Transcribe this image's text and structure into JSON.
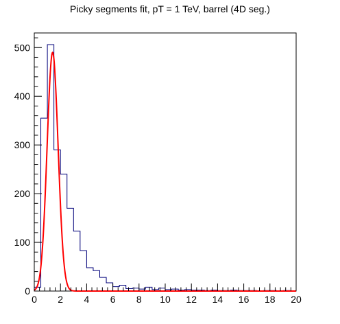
{
  "chart_data": {
    "type": "histogram",
    "title": "Picky segments fit, pT = 1 TeV, barrel (4D seg.)",
    "xlim": [
      0,
      20
    ],
    "ylim": [
      0,
      530
    ],
    "x_ticks": [
      0,
      2,
      4,
      6,
      8,
      10,
      12,
      14,
      16,
      18,
      20
    ],
    "y_ticks": [
      0,
      100,
      200,
      300,
      400,
      500
    ],
    "bin_width": 0.5,
    "bin_edges_start": 0,
    "series": [
      {
        "kind": "histogram",
        "color": "#00007a",
        "values": [
          8,
          355,
          506,
          290,
          240,
          170,
          123,
          83,
          48,
          42,
          28,
          17,
          9,
          12,
          5,
          6,
          4,
          8,
          3,
          6,
          3,
          4,
          2,
          3,
          2,
          2,
          1,
          2,
          1,
          1,
          2,
          1,
          1,
          1,
          0,
          1,
          1,
          0,
          1,
          0
        ]
      },
      {
        "kind": "fit",
        "color": "#ff0000",
        "function": "gaussian",
        "amplitude": 490,
        "mean": 1.4,
        "sigma": 0.42,
        "x_range": [
          0,
          20
        ]
      }
    ]
  }
}
